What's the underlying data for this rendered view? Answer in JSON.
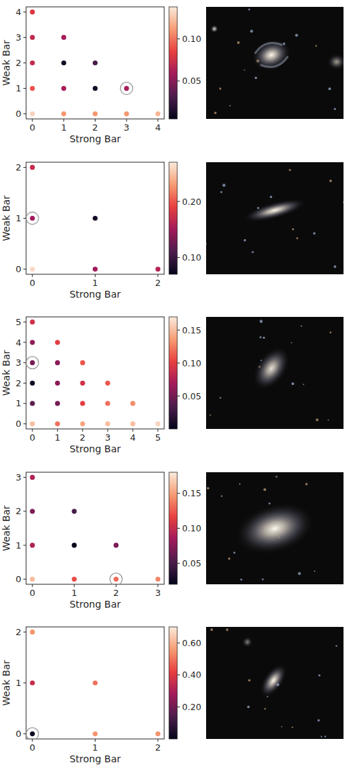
{
  "chart_data": [
    {
      "type": "scatter",
      "x_label": "Strong Bar",
      "y_label": "Weak Bar",
      "x": [
        0,
        0,
        0,
        0,
        0,
        1,
        1,
        1,
        1,
        2,
        2,
        2,
        3,
        3,
        4
      ],
      "values": [
        0,
        1,
        2,
        3,
        4,
        0,
        1,
        2,
        3,
        0,
        1,
        2,
        0,
        1,
        0
      ],
      "color_values": [
        0.13,
        0.09,
        0.07,
        0.07,
        0.08,
        0.11,
        0.06,
        0.01,
        0.06,
        0.11,
        0.01,
        0.03,
        0.11,
        0.06,
        0.12
      ],
      "xlim": [
        -0.2,
        4.2
      ],
      "ylim": [
        -0.2,
        4.2
      ],
      "xticks": [
        0,
        1,
        2,
        3,
        4
      ],
      "yticks": [
        0,
        1,
        2,
        3,
        4
      ],
      "colorbar_range": [
        0.005,
        0.138
      ],
      "colorbar_ticks": [
        0.05,
        {
          "value": 0.1,
          "label": "0.10"
        }
      ],
      "highlight": {
        "x": 3,
        "y": 1
      }
    },
    {
      "type": "scatter",
      "x_label": "Strong Bar",
      "y_label": "Weak Bar",
      "x": [
        0,
        0,
        0,
        1,
        1,
        2
      ],
      "values": [
        0,
        1,
        2,
        0,
        1,
        0
      ],
      "color_values": [
        0.26,
        0.15,
        0.17,
        0.15,
        0.08,
        0.16
      ],
      "xlim": [
        -0.1,
        2.1
      ],
      "ylim": [
        -0.1,
        2.1
      ],
      "xticks": [
        0,
        1,
        2
      ],
      "yticks": [
        0,
        1,
        2
      ],
      "colorbar_range": [
        0.07,
        0.27
      ],
      "colorbar_ticks": [
        {
          "value": 0.1,
          "label": "0.10"
        },
        {
          "value": 0.2,
          "label": "0.20"
        }
      ],
      "highlight": {
        "x": 0,
        "y": 1
      }
    },
    {
      "type": "scatter",
      "x_label": "Strong Bar",
      "y_label": "Weak Bar",
      "x": [
        0,
        0,
        0,
        0,
        0,
        0,
        1,
        1,
        1,
        1,
        1,
        2,
        2,
        2,
        2,
        3,
        3,
        3,
        4,
        4,
        5
      ],
      "values": [
        0,
        1,
        2,
        3,
        4,
        5,
        0,
        1,
        2,
        3,
        4,
        0,
        1,
        2,
        3,
        0,
        1,
        2,
        0,
        1,
        0
      ],
      "color_values": [
        0.15,
        0.04,
        0.005,
        0.05,
        0.06,
        0.09,
        0.12,
        0.05,
        0.06,
        0.06,
        0.1,
        0.14,
        0.1,
        0.09,
        0.11,
        0.15,
        0.12,
        0.11,
        0.15,
        0.13,
        0.16
      ],
      "xlim": [
        -0.25,
        5.25
      ],
      "ylim": [
        -0.25,
        5.25
      ],
      "xticks": [
        0,
        1,
        2,
        3,
        4,
        5
      ],
      "yticks": [
        0,
        1,
        2,
        3,
        4,
        5
      ],
      "colorbar_range": [
        0.0,
        0.17
      ],
      "colorbar_ticks": [
        0.05,
        {
          "value": 0.1,
          "label": "0.10"
        },
        0.15
      ],
      "highlight": {
        "x": 0,
        "y": 3
      }
    },
    {
      "type": "scatter",
      "x_label": "Strong Bar",
      "y_label": "Weak Bar",
      "x": [
        0,
        0,
        0,
        0,
        1,
        1,
        1,
        2,
        2,
        3
      ],
      "values": [
        0,
        1,
        2,
        3,
        0,
        1,
        2,
        0,
        1,
        0
      ],
      "color_values": [
        0.16,
        0.09,
        0.07,
        0.09,
        0.12,
        0.02,
        0.05,
        0.13,
        0.07,
        0.14
      ],
      "xlim": [
        -0.15,
        3.15
      ],
      "ylim": [
        -0.15,
        3.15
      ],
      "xticks": [
        0,
        1,
        2,
        3
      ],
      "yticks": [
        0,
        1,
        2,
        3
      ],
      "colorbar_range": [
        0.02,
        0.18
      ],
      "colorbar_ticks": [
        0.05,
        {
          "value": 0.1,
          "label": "0.10"
        },
        0.15
      ],
      "highlight": {
        "x": 2,
        "y": 0
      }
    },
    {
      "type": "scatter",
      "x_label": "Strong Bar",
      "y_label": "Weak Bar",
      "x": [
        0,
        0,
        0,
        1,
        1,
        2
      ],
      "values": [
        0,
        1,
        2,
        0,
        1,
        0
      ],
      "color_values": [
        0.02,
        0.35,
        0.55,
        0.55,
        0.5,
        0.55
      ],
      "xlim": [
        -0.1,
        2.1
      ],
      "ylim": [
        -0.1,
        2.1
      ],
      "xticks": [
        0,
        1,
        2
      ],
      "yticks": [
        0,
        1,
        2
      ],
      "colorbar_range": [
        0.0,
        0.7
      ],
      "colorbar_ticks": [
        {
          "value": 0.2,
          "label": "0.20"
        },
        {
          "value": 0.4,
          "label": "0.40"
        },
        {
          "value": 0.6,
          "label": "0.60"
        }
      ],
      "highlight": {
        "x": 0,
        "y": 0
      }
    }
  ]
}
